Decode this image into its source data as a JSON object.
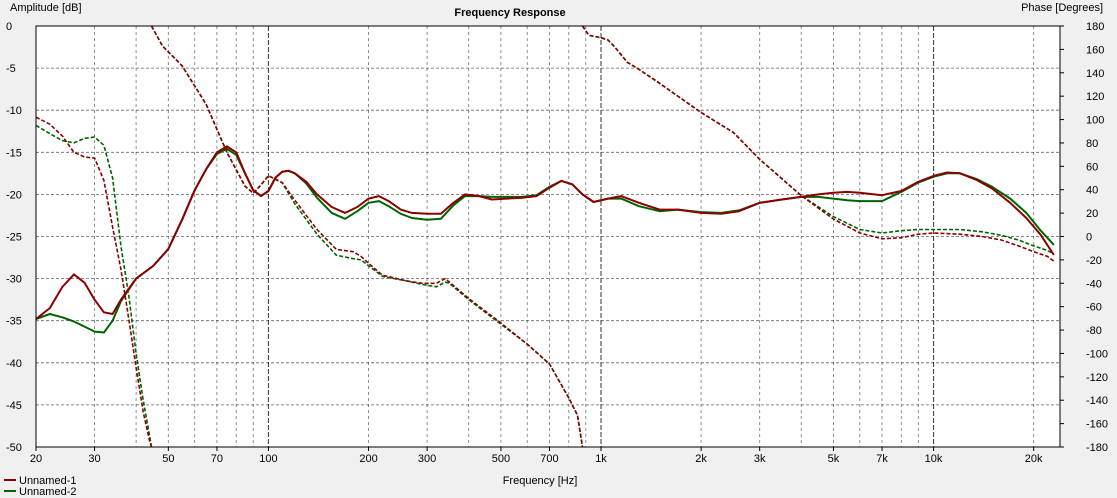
{
  "chart_data": {
    "type": "line",
    "title": "Frequency Response",
    "xlabel": "Frequency [Hz]",
    "ylabel_left": "Amplitude [dB]",
    "ylabel_right": "Phase [Degrees]",
    "x_scale": "log",
    "xlim": [
      20,
      24000
    ],
    "ylim_left": [
      -50,
      0
    ],
    "ylim_right": [
      -180,
      180
    ],
    "grid": true,
    "legend_position": "bottom-left",
    "x_ticks": [
      {
        "v": 20,
        "label": "20"
      },
      {
        "v": 30,
        "label": "30"
      },
      {
        "v": 50,
        "label": "50"
      },
      {
        "v": 70,
        "label": "70"
      },
      {
        "v": 100,
        "label": "100"
      },
      {
        "v": 200,
        "label": "200"
      },
      {
        "v": 300,
        "label": "300"
      },
      {
        "v": 500,
        "label": "500"
      },
      {
        "v": 700,
        "label": "700"
      },
      {
        "v": 1000,
        "label": "1k"
      },
      {
        "v": 2000,
        "label": "2k"
      },
      {
        "v": 3000,
        "label": "3k"
      },
      {
        "v": 5000,
        "label": "5k"
      },
      {
        "v": 7000,
        "label": "7k"
      },
      {
        "v": 10000,
        "label": "10k"
      },
      {
        "v": 20000,
        "label": "20k"
      }
    ],
    "y_ticks_left": [
      0,
      -5,
      -10,
      -15,
      -20,
      -25,
      -30,
      -35,
      -40,
      -45,
      -50
    ],
    "y_ticks_right": [
      180,
      160,
      140,
      120,
      100,
      80,
      60,
      40,
      20,
      0,
      -20,
      -40,
      -60,
      -80,
      -100,
      -120,
      -140,
      -160,
      -180
    ],
    "series": [
      {
        "name": "Unnamed-1",
        "color": "#8b0000",
        "amplitude": [
          [
            20,
            -34.8
          ],
          [
            22,
            -33.5
          ],
          [
            24,
            -31
          ],
          [
            26,
            -29.5
          ],
          [
            28,
            -30.5
          ],
          [
            30,
            -32.5
          ],
          [
            32,
            -34
          ],
          [
            34,
            -34.2
          ],
          [
            36,
            -32.5
          ],
          [
            40,
            -30
          ],
          [
            45,
            -28.5
          ],
          [
            50,
            -26.5
          ],
          [
            55,
            -23
          ],
          [
            60,
            -19.5
          ],
          [
            65,
            -17
          ],
          [
            70,
            -15
          ],
          [
            75,
            -14.3
          ],
          [
            80,
            -15
          ],
          [
            85,
            -17.5
          ],
          [
            90,
            -19.5
          ],
          [
            95,
            -20.2
          ],
          [
            100,
            -19.6
          ],
          [
            105,
            -18
          ],
          [
            110,
            -17.3
          ],
          [
            115,
            -17.2
          ],
          [
            120,
            -17.5
          ],
          [
            130,
            -18.5
          ],
          [
            140,
            -20
          ],
          [
            155,
            -21.5
          ],
          [
            170,
            -22.2
          ],
          [
            185,
            -21.5
          ],
          [
            200,
            -20.5
          ],
          [
            215,
            -20.2
          ],
          [
            230,
            -20.8
          ],
          [
            250,
            -21.8
          ],
          [
            270,
            -22.2
          ],
          [
            300,
            -22.3
          ],
          [
            330,
            -22.3
          ],
          [
            360,
            -21
          ],
          [
            390,
            -20
          ],
          [
            430,
            -20.2
          ],
          [
            470,
            -20.6
          ],
          [
            520,
            -20.5
          ],
          [
            580,
            -20.4
          ],
          [
            640,
            -20.2
          ],
          [
            700,
            -19.2
          ],
          [
            760,
            -18.4
          ],
          [
            820,
            -18.8
          ],
          [
            880,
            -20
          ],
          [
            950,
            -20.9
          ],
          [
            1050,
            -20.5
          ],
          [
            1150,
            -20.2
          ],
          [
            1300,
            -21
          ],
          [
            1500,
            -21.8
          ],
          [
            1700,
            -21.8
          ],
          [
            2000,
            -22.2
          ],
          [
            2300,
            -22.3
          ],
          [
            2600,
            -22
          ],
          [
            3000,
            -21
          ],
          [
            3500,
            -20.6
          ],
          [
            4000,
            -20.3
          ],
          [
            4500,
            -20
          ],
          [
            5000,
            -19.8
          ],
          [
            5500,
            -19.7
          ],
          [
            6000,
            -19.8
          ],
          [
            7000,
            -20.1
          ],
          [
            8000,
            -19.6
          ],
          [
            9000,
            -18.5
          ],
          [
            10000,
            -17.8
          ],
          [
            11000,
            -17.4
          ],
          [
            12000,
            -17.5
          ],
          [
            13500,
            -18.3
          ],
          [
            15000,
            -19.3
          ],
          [
            17000,
            -21
          ],
          [
            19000,
            -22.8
          ],
          [
            21000,
            -24.8
          ],
          [
            23000,
            -27.2
          ]
        ],
        "phase": [
          [
            20,
            102
          ],
          [
            22,
            96
          ],
          [
            24,
            86
          ],
          [
            26,
            72
          ],
          [
            28,
            68
          ],
          [
            30,
            67
          ],
          [
            32,
            48
          ],
          [
            34,
            8
          ],
          [
            36,
            -28
          ],
          [
            38,
            -70
          ],
          [
            40,
            -112
          ],
          [
            42,
            -150
          ],
          [
            44,
            -176
          ],
          [
            44.5,
            -180
          ],
          [
            44.5,
            180
          ],
          [
            48,
            163
          ],
          [
            55,
            146
          ],
          [
            65,
            113
          ],
          [
            75,
            72
          ],
          [
            85,
            43
          ],
          [
            90,
            37
          ],
          [
            95,
            44
          ],
          [
            100,
            52
          ],
          [
            110,
            46
          ],
          [
            120,
            31
          ],
          [
            140,
            6
          ],
          [
            160,
            -11
          ],
          [
            180,
            -13
          ],
          [
            190,
            -17
          ],
          [
            200,
            -23
          ],
          [
            220,
            -33
          ],
          [
            260,
            -38
          ],
          [
            290,
            -40
          ],
          [
            320,
            -40
          ],
          [
            340,
            -36
          ],
          [
            350,
            -39
          ],
          [
            400,
            -53
          ],
          [
            500,
            -74
          ],
          [
            600,
            -92
          ],
          [
            700,
            -109
          ],
          [
            800,
            -138
          ],
          [
            850,
            -153
          ],
          [
            880,
            -180
          ],
          [
            880,
            180
          ],
          [
            920,
            172
          ],
          [
            1000,
            170
          ],
          [
            1050,
            168
          ],
          [
            1100,
            162
          ],
          [
            1200,
            149
          ],
          [
            1300,
            143
          ],
          [
            1500,
            131
          ],
          [
            2000,
            106
          ],
          [
            2500,
            89
          ],
          [
            3000,
            66
          ],
          [
            4000,
            35
          ],
          [
            5000,
            15
          ],
          [
            6000,
            3
          ],
          [
            7000,
            -2
          ],
          [
            8000,
            -1
          ],
          [
            9000,
            2
          ],
          [
            10000,
            3
          ],
          [
            12000,
            2
          ],
          [
            14000,
            0
          ],
          [
            16000,
            -3
          ],
          [
            18000,
            -8
          ],
          [
            20000,
            -13
          ],
          [
            22000,
            -17
          ],
          [
            23000,
            -21
          ]
        ]
      },
      {
        "name": "Unnamed-2",
        "color": "#006400",
        "amplitude": [
          [
            20,
            -34.8
          ],
          [
            22,
            -34.2
          ],
          [
            24,
            -34.6
          ],
          [
            26,
            -35.1
          ],
          [
            28,
            -35.7
          ],
          [
            30,
            -36.3
          ],
          [
            32,
            -36.4
          ],
          [
            34,
            -35
          ],
          [
            36,
            -32.7
          ],
          [
            40,
            -30
          ],
          [
            45,
            -28.5
          ],
          [
            50,
            -26.5
          ],
          [
            55,
            -23
          ],
          [
            60,
            -19.5
          ],
          [
            65,
            -17
          ],
          [
            70,
            -15.2
          ],
          [
            75,
            -14.6
          ],
          [
            80,
            -15.3
          ],
          [
            85,
            -17.5
          ],
          [
            90,
            -19.5
          ],
          [
            95,
            -20.2
          ],
          [
            100,
            -19.6
          ],
          [
            105,
            -18
          ],
          [
            110,
            -17.3
          ],
          [
            115,
            -17.2
          ],
          [
            120,
            -17.5
          ],
          [
            130,
            -18.7
          ],
          [
            140,
            -20.4
          ],
          [
            155,
            -22.2
          ],
          [
            170,
            -22.9
          ],
          [
            185,
            -22
          ],
          [
            200,
            -21
          ],
          [
            215,
            -20.8
          ],
          [
            230,
            -21.4
          ],
          [
            250,
            -22.3
          ],
          [
            270,
            -22.8
          ],
          [
            300,
            -23
          ],
          [
            330,
            -22.9
          ],
          [
            360,
            -21.3
          ],
          [
            390,
            -20.2
          ],
          [
            430,
            -20.2
          ],
          [
            470,
            -20.3
          ],
          [
            520,
            -20.3
          ],
          [
            580,
            -20.3
          ],
          [
            640,
            -20.1
          ],
          [
            700,
            -19.1
          ],
          [
            760,
            -18.4
          ],
          [
            820,
            -18.8
          ],
          [
            880,
            -20
          ],
          [
            950,
            -20.9
          ],
          [
            1050,
            -20.5
          ],
          [
            1150,
            -20.5
          ],
          [
            1300,
            -21.4
          ],
          [
            1500,
            -22
          ],
          [
            1700,
            -21.8
          ],
          [
            2000,
            -22.1
          ],
          [
            2300,
            -22.2
          ],
          [
            2600,
            -21.9
          ],
          [
            3000,
            -21
          ],
          [
            3500,
            -20.6
          ],
          [
            4000,
            -20.3
          ],
          [
            4500,
            -20.3
          ],
          [
            5000,
            -20.5
          ],
          [
            5500,
            -20.7
          ],
          [
            6000,
            -20.8
          ],
          [
            7000,
            -20.8
          ],
          [
            8000,
            -19.7
          ],
          [
            9000,
            -18.6
          ],
          [
            10000,
            -17.9
          ],
          [
            11000,
            -17.5
          ],
          [
            12000,
            -17.5
          ],
          [
            13500,
            -18.2
          ],
          [
            15000,
            -19.1
          ],
          [
            17000,
            -20.5
          ],
          [
            19000,
            -22.2
          ],
          [
            21000,
            -24.3
          ],
          [
            23000,
            -26
          ]
        ],
        "phase": [
          [
            20,
            95
          ],
          [
            22,
            88
          ],
          [
            24,
            82
          ],
          [
            26,
            80
          ],
          [
            28,
            84
          ],
          [
            30,
            85
          ],
          [
            32,
            78
          ],
          [
            34,
            50
          ],
          [
            36,
            -8
          ],
          [
            38,
            -50
          ],
          [
            40,
            -100
          ],
          [
            42,
            -140
          ],
          [
            44,
            -172
          ],
          [
            44.5,
            -180
          ],
          [
            44.5,
            180
          ],
          [
            48,
            163
          ],
          [
            55,
            146
          ],
          [
            65,
            113
          ],
          [
            75,
            72
          ],
          [
            85,
            43
          ],
          [
            90,
            37
          ],
          [
            95,
            44
          ],
          [
            100,
            52
          ],
          [
            110,
            46
          ],
          [
            120,
            28
          ],
          [
            140,
            2
          ],
          [
            160,
            -16
          ],
          [
            180,
            -19
          ],
          [
            190,
            -20
          ],
          [
            200,
            -25
          ],
          [
            220,
            -34
          ],
          [
            260,
            -38
          ],
          [
            290,
            -41
          ],
          [
            320,
            -43
          ],
          [
            340,
            -39
          ],
          [
            350,
            -40
          ],
          [
            400,
            -54
          ],
          [
            500,
            -75
          ],
          [
            600,
            -92
          ],
          [
            700,
            -109
          ],
          [
            800,
            -138
          ],
          [
            850,
            -153
          ],
          [
            880,
            -180
          ],
          [
            880,
            180
          ],
          [
            920,
            172
          ],
          [
            1000,
            170
          ],
          [
            1050,
            168
          ],
          [
            1100,
            162
          ],
          [
            1200,
            149
          ],
          [
            1300,
            143
          ],
          [
            1500,
            131
          ],
          [
            2000,
            106
          ],
          [
            2500,
            89
          ],
          [
            3000,
            66
          ],
          [
            4000,
            35
          ],
          [
            5000,
            17
          ],
          [
            6000,
            6
          ],
          [
            7000,
            3
          ],
          [
            8000,
            5
          ],
          [
            9000,
            6
          ],
          [
            10000,
            6
          ],
          [
            12000,
            6
          ],
          [
            14000,
            4
          ],
          [
            16000,
            1
          ],
          [
            18000,
            -3
          ],
          [
            20000,
            -8
          ],
          [
            22000,
            -12
          ],
          [
            23000,
            -15
          ]
        ]
      }
    ]
  }
}
